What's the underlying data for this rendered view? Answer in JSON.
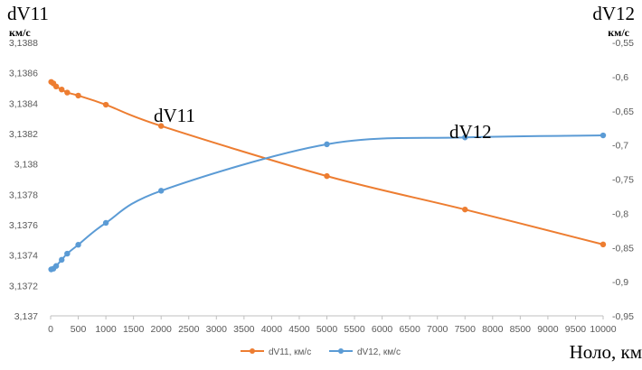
{
  "chart_data": {
    "type": "line",
    "left_axis": {
      "title": "dV11",
      "unit": "км/с",
      "ylim": [
        3.137,
        3.1388
      ],
      "ticks": [
        "3,137",
        "3,1372",
        "3,1374",
        "3,1376",
        "3,1378",
        "3,138",
        "3,1382",
        "3,1384",
        "3,1386",
        "3,1388"
      ]
    },
    "right_axis": {
      "title": "dV12",
      "unit": "км/с",
      "ylim": [
        -0.95,
        -0.55
      ],
      "ticks": [
        "-0,95",
        "-0,9",
        "-0,85",
        "-0,8",
        "-0,75",
        "-0,7",
        "-0,65",
        "-0,6",
        "-0,55"
      ]
    },
    "x_axis": {
      "label": "Ноло, км",
      "xlim": [
        0,
        10000
      ],
      "ticks": [
        "0",
        "500",
        "1000",
        "1500",
        "2000",
        "2500",
        "3000",
        "3500",
        "4000",
        "4500",
        "5000",
        "5500",
        "6000",
        "6500",
        "7000",
        "7500",
        "8000",
        "8500",
        "9000",
        "9500",
        "10000"
      ]
    },
    "series": [
      {
        "name": "dV11, км/с",
        "axis": "left",
        "color": "#ED7D31",
        "x": [
          10,
          50,
          100,
          200,
          300,
          500,
          1000,
          2000,
          5000,
          7500,
          10000
        ],
        "y": [
          3.13854,
          3.13853,
          3.13851,
          3.13849,
          3.13847,
          3.13845,
          3.13839,
          3.13825,
          3.13792,
          3.1377,
          3.13747
        ]
      },
      {
        "name": "dV12, км/с",
        "axis": "right",
        "color": "#5B9BD5",
        "x": [
          10,
          50,
          100,
          200,
          300,
          500,
          1000,
          2000,
          5000,
          7500,
          10000
        ],
        "y": [
          -0.882,
          -0.881,
          -0.877,
          -0.868,
          -0.859,
          -0.846,
          -0.814,
          -0.767,
          -0.699,
          -0.689,
          -0.686
        ]
      }
    ],
    "annotations": [
      {
        "text": "dV11",
        "series": "dV11, км/с"
      },
      {
        "text": "dV12",
        "series": "dV12, км/с"
      }
    ],
    "legend": "bottom",
    "grid": false
  }
}
